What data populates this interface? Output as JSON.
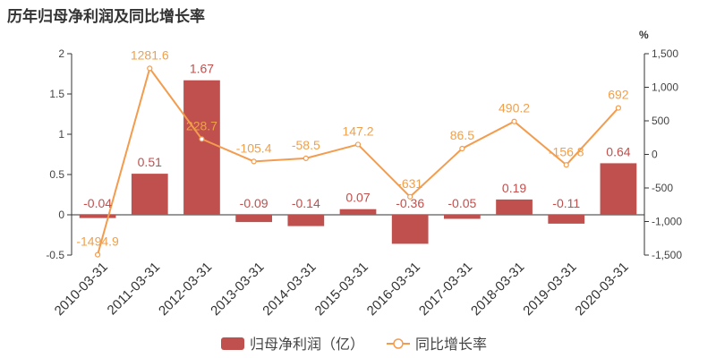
{
  "title": "历年归母净利润及同比增长率",
  "colors": {
    "bar": "#c0504d",
    "line": "#f39c4e",
    "axis": "#333333"
  },
  "chart_data": {
    "type": "bar",
    "categories": [
      "2010-03-31",
      "2011-03-31",
      "2012-03-31",
      "2013-03-31",
      "2014-03-31",
      "2015-03-31",
      "2016-03-31",
      "2017-03-31",
      "2018-03-31",
      "2019-03-31",
      "2020-03-31"
    ],
    "series": [
      {
        "name": "归母净利润（亿）",
        "type": "bar",
        "axis": "left",
        "values": [
          -0.04,
          0.51,
          1.67,
          -0.09,
          -0.14,
          0.07,
          -0.36,
          -0.05,
          0.19,
          -0.11,
          0.64
        ],
        "labels": [
          "-0.04",
          "0.51",
          "1.67",
          "-0.09",
          "-0.14",
          "0.07",
          "-0.36",
          "-0.05",
          "0.19",
          "-0.11",
          "0.64"
        ]
      },
      {
        "name": "同比增长率",
        "type": "line",
        "axis": "right",
        "values": [
          -1494.9,
          1281.6,
          228.7,
          -105.4,
          -58.5,
          147.2,
          -631,
          86.5,
          490.2,
          -156.8,
          692
        ],
        "labels": [
          "-1494.9",
          "1281.6",
          "228.7",
          "-105.4",
          "-58.5",
          "147.2",
          "-631",
          "86.5",
          "490.2",
          "-156.8",
          "692"
        ]
      }
    ],
    "y_left": {
      "min": -0.5,
      "max": 2,
      "ticks": [
        -0.5,
        0,
        0.5,
        1,
        1.5,
        2
      ],
      "tick_labels": [
        "-0.5",
        "0",
        "0.5",
        "1",
        "1.5",
        "2"
      ]
    },
    "y_right": {
      "min": -1500,
      "max": 1500,
      "ticks": [
        -1500,
        -1000,
        -500,
        0,
        500,
        1000,
        1500
      ],
      "tick_labels": [
        "-1,500",
        "-1,000",
        "-500",
        "0",
        "500",
        "1,000",
        "1,500"
      ],
      "unit": "%"
    },
    "legend_position": "bottom-center"
  }
}
